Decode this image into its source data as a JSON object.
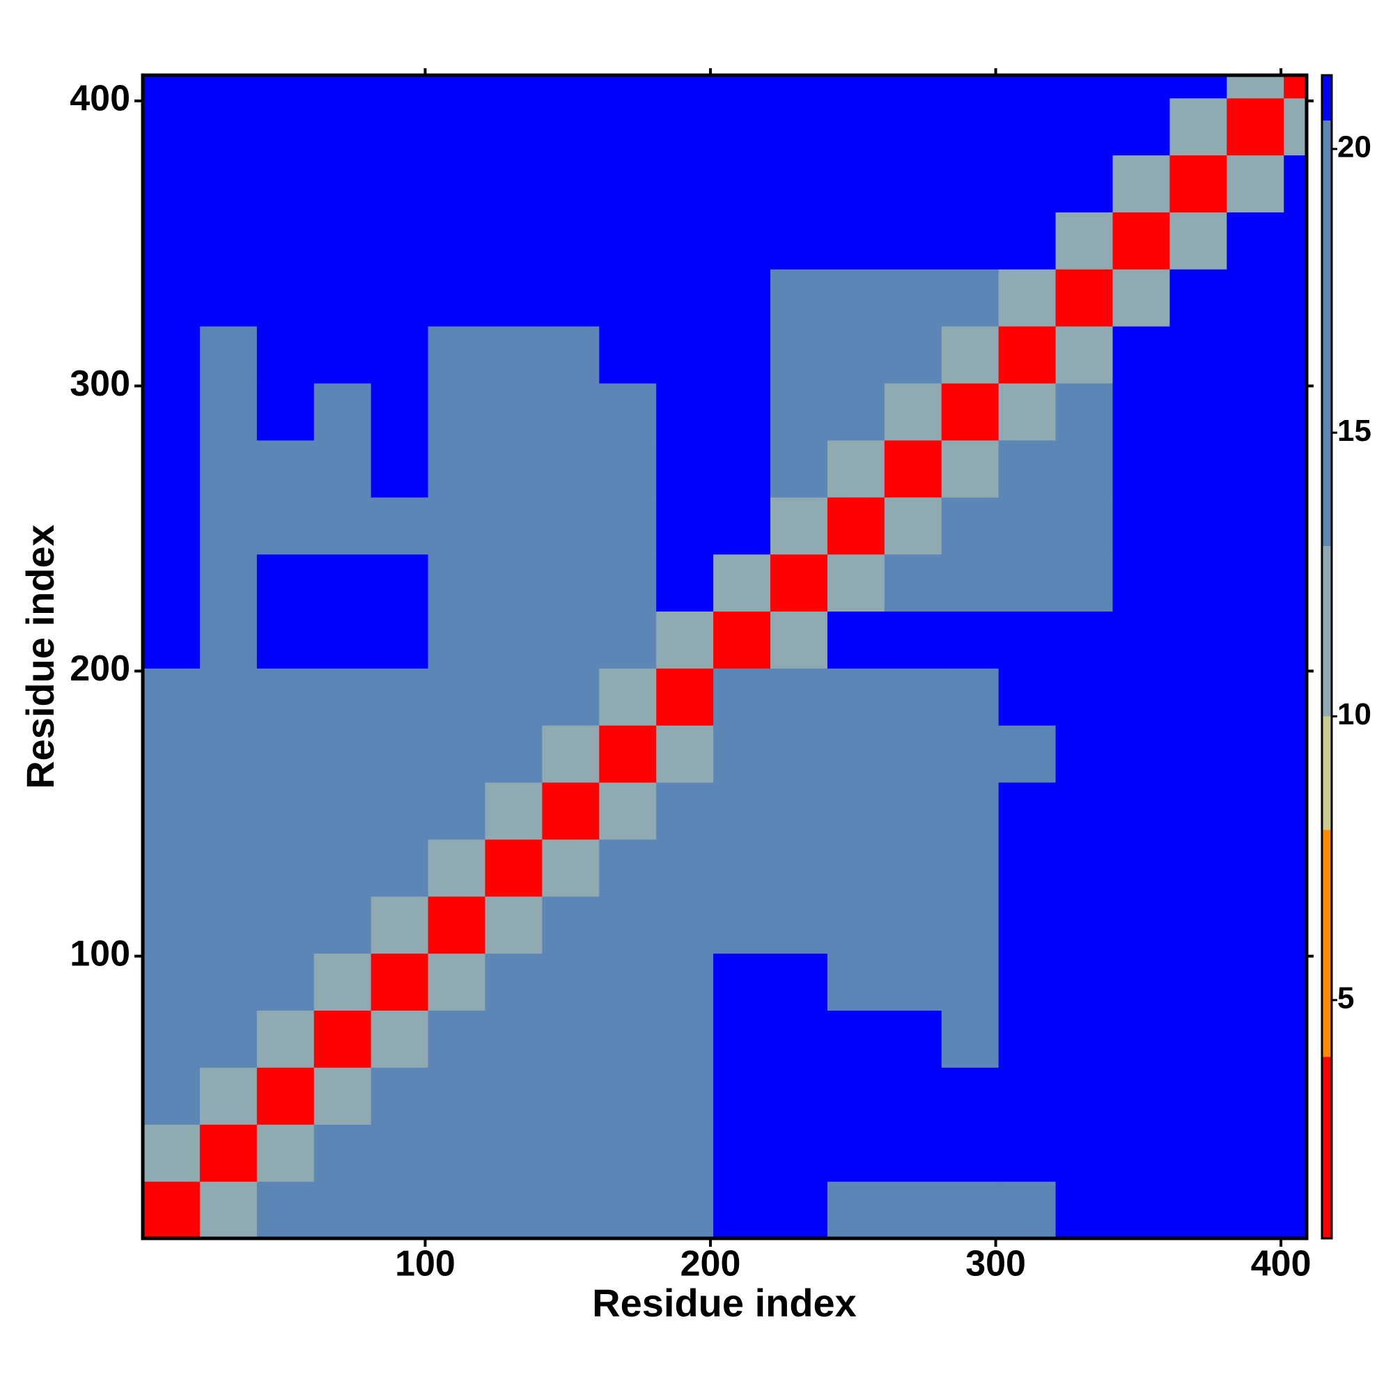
{
  "chart_data": {
    "type": "heatmap",
    "x_label": "Residue index",
    "y_label": "Residue index",
    "xlim": [
      1,
      409
    ],
    "ylim": [
      1,
      409
    ],
    "xticks": [
      100,
      200,
      300,
      400
    ],
    "yticks": [
      100,
      200,
      300,
      400
    ],
    "x_bins": [
      1,
      21,
      41,
      61,
      81,
      101,
      121,
      141,
      161,
      181,
      201,
      221,
      241,
      261,
      281,
      301,
      321,
      341,
      361,
      381,
      401,
      409
    ],
    "y_bins": [
      1,
      21,
      41,
      61,
      81,
      101,
      121,
      141,
      161,
      181,
      201,
      221,
      241,
      261,
      281,
      301,
      321,
      341,
      361,
      381,
      401,
      409
    ],
    "zlim": [
      0.8,
      21.3
    ],
    "zticks": [
      5,
      10,
      15,
      20
    ],
    "colorscale": [
      {
        "max": 4,
        "color": "#ff0000"
      },
      {
        "max": 8,
        "color": "#ff8c00"
      },
      {
        "max": 10,
        "color": "#c9cc8c"
      },
      {
        "max": 13,
        "color": "#8faab0"
      },
      {
        "max": 20.5,
        "color": "#5b86b6"
      },
      {
        "color": "#0000ff"
      }
    ],
    "z": [
      [
        3,
        11,
        14,
        17,
        17,
        17,
        17,
        17,
        17,
        19,
        21,
        21,
        20,
        20,
        20,
        20,
        21,
        21,
        21,
        21,
        21
      ],
      [
        11,
        3,
        11,
        14,
        17,
        17,
        17,
        17,
        17,
        19,
        21,
        21,
        21,
        21,
        21,
        21,
        21,
        21,
        21,
        21,
        21
      ],
      [
        14,
        11,
        3,
        11,
        14,
        17,
        17,
        17,
        17,
        19,
        21,
        21,
        21,
        21,
        21,
        21,
        21,
        21,
        21,
        21,
        21
      ],
      [
        14,
        14,
        11,
        3,
        11,
        14,
        17,
        17,
        17,
        19,
        21,
        21,
        21,
        21,
        20,
        21,
        21,
        21,
        21,
        21,
        21
      ],
      [
        14,
        14,
        14,
        11,
        3,
        11,
        17,
        17,
        17,
        19,
        21,
        21,
        20,
        20,
        20,
        21,
        21,
        21,
        21,
        21,
        21
      ],
      [
        17,
        17,
        17,
        17,
        11,
        3,
        11,
        14,
        14,
        17,
        19,
        19,
        20,
        20,
        20,
        21,
        21,
        21,
        21,
        21,
        21
      ],
      [
        17,
        17,
        17,
        17,
        17,
        11,
        3,
        11,
        14,
        14,
        18,
        18,
        19,
        20,
        20,
        21,
        21,
        21,
        21,
        21,
        21
      ],
      [
        17,
        17,
        19,
        17,
        17,
        14,
        11,
        3,
        11,
        14,
        18,
        18,
        19,
        19,
        20,
        21,
        21,
        21,
        21,
        21,
        21
      ],
      [
        17,
        17,
        17,
        17,
        17,
        14,
        14,
        11,
        3,
        11,
        18,
        18,
        19,
        19,
        20,
        20,
        21,
        21,
        21,
        21,
        21
      ],
      [
        19,
        19,
        19,
        19,
        19,
        14,
        14,
        14,
        11,
        3,
        19,
        20,
        20,
        20,
        20,
        21,
        21,
        21,
        21,
        21,
        21
      ],
      [
        21,
        20,
        21,
        21,
        21,
        18,
        19,
        19,
        19,
        11,
        3,
        11,
        21,
        21,
        21,
        21,
        21,
        21,
        21,
        21,
        21
      ],
      [
        21,
        20,
        21,
        21,
        21,
        18,
        19,
        18,
        19,
        21,
        11,
        3,
        11,
        14,
        16,
        16,
        16,
        21,
        21,
        21,
        21
      ],
      [
        21,
        20,
        20,
        20,
        20,
        18,
        19,
        18,
        19,
        21,
        21,
        11,
        3,
        11,
        14,
        16,
        16,
        21,
        21,
        21,
        21
      ],
      [
        21,
        20,
        20,
        20,
        21,
        18,
        19,
        18,
        19,
        21,
        21,
        14,
        11,
        3,
        11,
        14,
        16,
        21,
        21,
        21,
        21
      ],
      [
        21,
        20,
        21,
        20,
        21,
        19,
        19,
        19,
        19,
        21,
        21,
        16,
        14,
        11,
        3,
        11,
        16,
        21,
        21,
        21,
        21
      ],
      [
        21,
        20,
        21,
        21,
        21,
        20,
        20,
        20,
        21,
        21,
        21,
        16,
        16,
        14,
        11,
        3,
        11,
        21,
        21,
        21,
        21
      ],
      [
        21,
        21,
        21,
        21,
        21,
        21,
        21,
        21,
        21,
        21,
        21,
        16,
        16,
        16,
        16,
        11,
        3,
        11,
        21,
        21,
        21
      ],
      [
        21,
        21,
        21,
        21,
        21,
        21,
        21,
        21,
        21,
        21,
        21,
        21,
        21,
        21,
        21,
        21,
        11,
        3,
        11,
        21,
        21
      ],
      [
        21,
        21,
        21,
        21,
        21,
        21,
        21,
        21,
        21,
        21,
        21,
        21,
        21,
        21,
        21,
        21,
        21,
        11,
        3,
        11,
        21
      ],
      [
        21,
        21,
        21,
        21,
        21,
        21,
        21,
        21,
        21,
        21,
        21,
        21,
        21,
        21,
        21,
        21,
        21,
        21,
        11,
        3,
        11
      ],
      [
        21,
        21,
        21,
        21,
        21,
        21,
        21,
        21,
        21,
        21,
        21,
        21,
        21,
        21,
        21,
        21,
        21,
        21,
        21,
        11,
        3
      ]
    ]
  }
}
